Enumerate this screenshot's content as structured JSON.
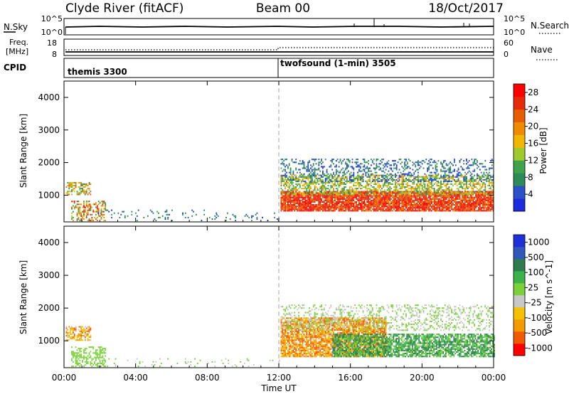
{
  "header": {
    "station": "Clyde River (fitACF)",
    "beam": "Beam 00",
    "date": "18/Oct/2017"
  },
  "strip": {
    "nsky_label": "N.Sky",
    "nsearch_label": "N.Search",
    "freq_label_1": "Freq.",
    "freq_label_2": "[MHz]",
    "nave_label": "Nave",
    "cpid_label": "CPID",
    "noise_ticks_left": [
      "10^5",
      "10^0"
    ],
    "noise_ticks_right": [
      "10^5",
      "10^0"
    ],
    "freq_ticks_left": [
      "18",
      "8"
    ],
    "nave_ticks_right": [
      "60",
      "0"
    ],
    "cpid_segments": [
      {
        "label": "themis 3300",
        "start_hour": 0,
        "end_hour": 12
      },
      {
        "label": "twofsound (1-min) 3505",
        "start_hour": 12,
        "end_hour": 24
      }
    ]
  },
  "colors": {
    "power": [
      "#1a2be0",
      "#2a51c8",
      "#2e8b57",
      "#3fa34d",
      "#9fca2e",
      "#f2b705",
      "#f08a00",
      "#e85d00",
      "#e52b0a",
      "#ff0000"
    ],
    "velocity": [
      "#ff0000",
      "#f05a00",
      "#f39a00",
      "#f5c000",
      "#c8c8c8",
      "#7bd13a",
      "#3cb34a",
      "#2e7b4f",
      "#2f58b8",
      "#2030d8"
    ]
  },
  "chart_data": [
    {
      "type": "heatmap",
      "panel": "power",
      "ylabel": "Slant Range [km]",
      "xlabel": "Time UT",
      "x_ticks": [
        "00:00",
        "04:00",
        "08:00",
        "12:00",
        "16:00",
        "20:00",
        "00:00"
      ],
      "xlim_hours": [
        0,
        24
      ],
      "y_ticks": [
        "1000",
        "2000",
        "3000",
        "4000"
      ],
      "ylim_km": [
        180,
        4500
      ],
      "colorbar_label": "Power [dB]",
      "colorbar_ticks": [
        "4",
        "8",
        "12",
        "16",
        "20",
        "24",
        "28"
      ],
      "colorbar_range": [
        0,
        30
      ],
      "dashed_line_hour": 12,
      "regions": [
        {
          "t0": 0.1,
          "t1": 1.5,
          "r0": 1000,
          "r1": 1400,
          "vmin": 6,
          "vmax": 24,
          "density": 0.55
        },
        {
          "t0": 0.4,
          "t1": 2.3,
          "r0": 200,
          "r1": 800,
          "vmin": 8,
          "vmax": 28,
          "density": 0.45
        },
        {
          "t0": 1.8,
          "t1": 8.5,
          "r0": 200,
          "r1": 550,
          "vmin": 2,
          "vmax": 10,
          "density": 0.08
        },
        {
          "t0": 8.5,
          "t1": 12,
          "r0": 200,
          "r1": 450,
          "vmin": 2,
          "vmax": 10,
          "density": 0.1
        },
        {
          "t0": 12.1,
          "t1": 24,
          "r0": 500,
          "r1": 1100,
          "vmin": 20,
          "vmax": 30,
          "density": 0.9
        },
        {
          "t0": 12.1,
          "t1": 24,
          "r0": 1000,
          "r1": 1600,
          "vmin": 8,
          "vmax": 20,
          "density": 0.55
        },
        {
          "t0": 12.1,
          "t1": 24,
          "r0": 1400,
          "r1": 2100,
          "vmin": 2,
          "vmax": 10,
          "density": 0.3
        }
      ]
    },
    {
      "type": "heatmap",
      "panel": "velocity",
      "ylabel": "Slant Range [km]",
      "xlabel": "Time UT",
      "x_ticks": [
        "00:00",
        "04:00",
        "08:00",
        "12:00",
        "16:00",
        "20:00",
        "00:00"
      ],
      "xlim_hours": [
        0,
        24
      ],
      "y_ticks": [
        "1000",
        "2000",
        "3000",
        "4000"
      ],
      "ylim_km": [
        180,
        4500
      ],
      "colorbar_label": "Velocity [m s^-1]",
      "colorbar_ticks": [
        "1000",
        "500",
        "100",
        "25",
        "-25",
        "-100",
        "-500",
        "-1000"
      ],
      "colorbar_range": [
        -1000,
        1000
      ],
      "dashed_line_hour": 12,
      "regions": [
        {
          "t0": 0.1,
          "t1": 1.5,
          "r0": 1000,
          "r1": 1450,
          "vmin": -700,
          "vmax": -150,
          "density": 0.6
        },
        {
          "t0": 0.4,
          "t1": 2.3,
          "r0": 200,
          "r1": 800,
          "vmin": 50,
          "vmax": 200,
          "density": 0.45
        },
        {
          "t0": 1.8,
          "t1": 12,
          "r0": 200,
          "r1": 450,
          "vmin": -200,
          "vmax": 200,
          "density": 0.07
        },
        {
          "t0": 12.1,
          "t1": 18,
          "r0": 500,
          "r1": 1700,
          "vmin": -800,
          "vmax": -150,
          "density": 0.8
        },
        {
          "t0": 15,
          "t1": 24,
          "r0": 500,
          "r1": 1200,
          "vmin": 80,
          "vmax": 600,
          "density": 0.75
        },
        {
          "t0": 12.1,
          "t1": 24,
          "r0": 1300,
          "r1": 2100,
          "vmin": -20,
          "vmax": 20,
          "density": 0.3
        }
      ]
    }
  ]
}
